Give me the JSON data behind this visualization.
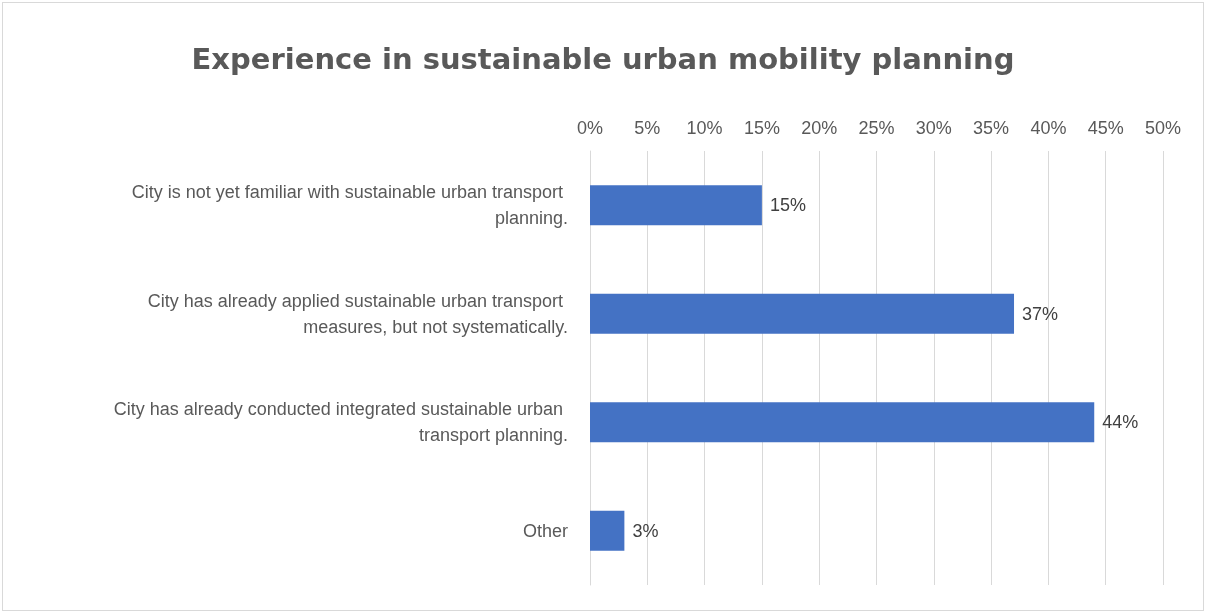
{
  "chart_data": {
    "type": "bar",
    "orientation": "horizontal",
    "title": "Experience in sustainable urban mobility planning",
    "categories": [
      "City is not yet familiar with sustainable urban transport planning.",
      "City has already applied sustainable urban transport measures, but not systematically.",
      "City has already conducted integrated sustainable urban transport planning.",
      "Other"
    ],
    "values": [
      15,
      37,
      44,
      3
    ],
    "color": "#4472c4",
    "value_labels": [
      "15%",
      "37%",
      "44%",
      "3%"
    ],
    "xlim": [
      0,
      50
    ],
    "xticks": [
      {
        "value": 0,
        "label": "0%"
      },
      {
        "value": 5,
        "label": "5%"
      },
      {
        "value": 10,
        "label": "10%"
      },
      {
        "value": 15,
        "label": "15%"
      },
      {
        "value": 20,
        "label": "20%"
      },
      {
        "value": 25,
        "label": "25%"
      },
      {
        "value": 30,
        "label": "30%"
      },
      {
        "value": 35,
        "label": "35%"
      },
      {
        "value": 40,
        "label": "40%"
      },
      {
        "value": 45,
        "label": "45%"
      },
      {
        "value": 50,
        "label": "50%"
      }
    ],
    "grid": "x"
  }
}
